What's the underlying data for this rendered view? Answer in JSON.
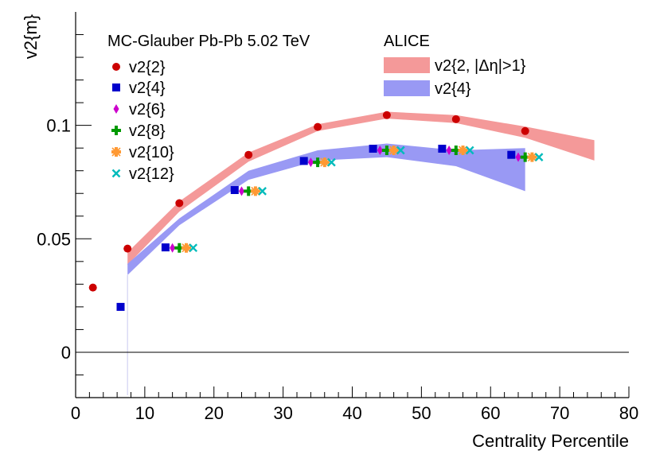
{
  "chart_data": {
    "type": "scatter",
    "xlabel": "Centrality Percentile",
    "ylabel": "v2{m}",
    "xlim": [
      0,
      80
    ],
    "ylim": [
      -0.02,
      0.15
    ],
    "x_ticks": [
      0,
      10,
      20,
      30,
      40,
      50,
      60,
      70,
      80
    ],
    "x_tick_labels": [
      "0",
      "10",
      "20",
      "30",
      "40",
      "50",
      "60",
      "70",
      "80"
    ],
    "y_ticks": [
      0,
      0.05,
      0.1
    ],
    "y_tick_labels": [
      "0",
      "0.05",
      "0.1"
    ],
    "legend_left_title": "MC-Glauber Pb-Pb 5.02 TeV",
    "legend_right_title": "ALICE",
    "series": [
      {
        "name": "v2{2}",
        "marker": "circle",
        "color": "#cc0000",
        "x": [
          2.5,
          7.5,
          15,
          25,
          35,
          45,
          55,
          65
        ],
        "y": [
          0.0285,
          0.0457,
          0.0657,
          0.087,
          0.0993,
          0.1045,
          0.1027,
          0.0975
        ]
      },
      {
        "name": "v2{4}",
        "marker": "square",
        "color": "#0000cc",
        "x": [
          6.5,
          13,
          23,
          33,
          43,
          53,
          63
        ],
        "y": [
          0.02,
          0.0462,
          0.0715,
          0.0843,
          0.0897,
          0.0897,
          0.087
        ]
      },
      {
        "name": "v2{6}",
        "marker": "diamond",
        "color": "#cc00cc",
        "x": [
          14,
          24,
          34,
          44,
          54,
          64
        ],
        "y": [
          0.046,
          0.071,
          0.0837,
          0.089,
          0.089,
          0.086
        ]
      },
      {
        "name": "v2{8}",
        "marker": "plus",
        "color": "#009900",
        "x": [
          15,
          25,
          35,
          45,
          55,
          65
        ],
        "y": [
          0.046,
          0.071,
          0.0837,
          0.089,
          0.089,
          0.086
        ]
      },
      {
        "name": "v2{10}",
        "marker": "pluscross",
        "color": "#ff9933",
        "x": [
          16,
          26,
          36,
          46,
          56,
          66
        ],
        "y": [
          0.046,
          0.071,
          0.0837,
          0.089,
          0.089,
          0.086
        ]
      },
      {
        "name": "v2{12}",
        "marker": "cross",
        "color": "#00bbbb",
        "x": [
          17,
          27,
          37,
          47,
          57,
          67
        ],
        "y": [
          0.046,
          0.071,
          0.0837,
          0.089,
          0.089,
          0.086
        ]
      }
    ],
    "bands": [
      {
        "name": "v2{2, |Δη|>1}",
        "color": "#f49999",
        "x": [
          7.5,
          15,
          25,
          35,
          45,
          55,
          65,
          75
        ],
        "low": [
          0.0385,
          0.062,
          0.084,
          0.0975,
          0.103,
          0.101,
          0.0945,
          0.0845
        ],
        "high": [
          0.044,
          0.0665,
          0.088,
          0.1005,
          0.106,
          0.1045,
          0.0995,
          0.0935
        ]
      },
      {
        "name": "v2{4}",
        "color": "#9999f4",
        "x": [
          7.5,
          15,
          25,
          35,
          45,
          55,
          65
        ],
        "low": [
          0.034,
          0.056,
          0.076,
          0.0845,
          0.086,
          0.082,
          0.071
        ],
        "high": [
          0.039,
          0.059,
          0.08,
          0.089,
          0.092,
          0.089,
          0.09
        ]
      }
    ]
  }
}
